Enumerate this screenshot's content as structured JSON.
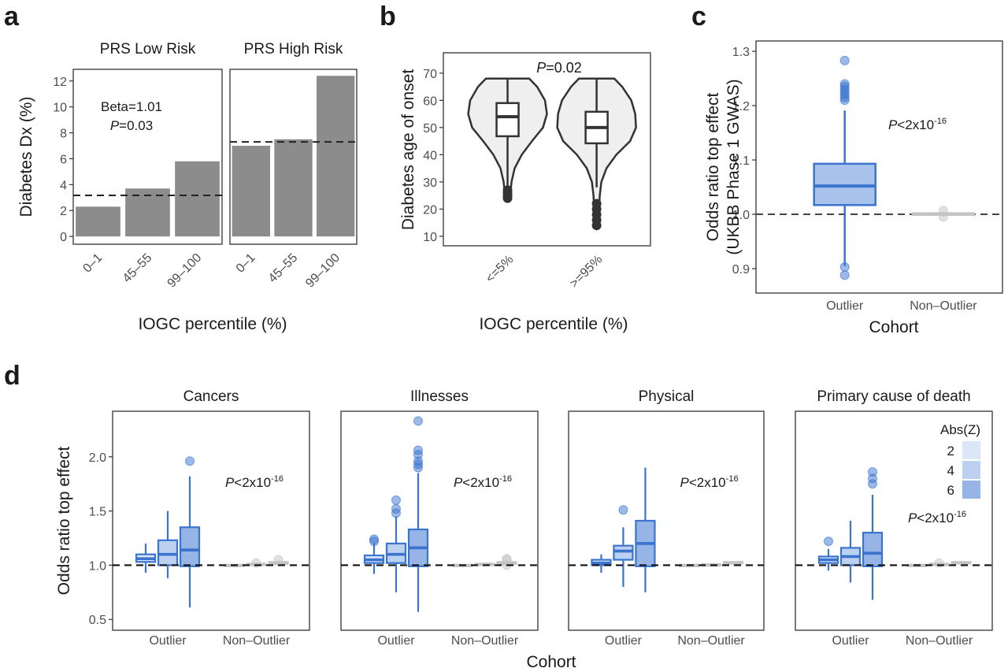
{
  "chart_data": [
    {
      "type": "bar",
      "panel": "a",
      "ylabel": "Diabetes Dx (%)",
      "xlabel": "IOGC percentile (%)",
      "ylim": [
        -0.6,
        12.9
      ],
      "yticks": [
        0,
        2,
        4,
        6,
        8,
        10,
        12
      ],
      "color": "#8c8c8c",
      "facets": [
        {
          "title": "PRS Low Risk",
          "categories": [
            "0–1",
            "45–55",
            "99–100"
          ],
          "values": [
            2.3,
            3.7,
            5.8
          ],
          "reference": 3.17
        },
        {
          "title": "PRS High Risk",
          "categories": [
            "0–1",
            "45–55",
            "99–100"
          ],
          "values": [
            7.0,
            7.5,
            12.4
          ],
          "reference": 7.3
        }
      ],
      "annotation": [
        [
          {
            "text": "Beta=1.01"
          }
        ],
        [
          {
            "text": "P",
            "style": "italic"
          },
          {
            "text": "=0.03"
          }
        ]
      ]
    },
    {
      "type": "violin",
      "panel": "b",
      "ylabel": "Diabetes age of onset",
      "xlabel": "IOGC percentile (%)",
      "ylim": [
        6.5,
        77.5
      ],
      "yticks": [
        10,
        20,
        30,
        40,
        50,
        60,
        70
      ],
      "fill": "#efefef",
      "stroke": "#333333",
      "categories": [
        "<=5%",
        ">=95%"
      ],
      "groups": [
        {
          "density_y": [
            68,
            65,
            60,
            55,
            50,
            45,
            40,
            35,
            30,
            27,
            24
          ],
          "density_width": [
            0.55,
            0.75,
            0.95,
            1.0,
            0.9,
            0.62,
            0.36,
            0.18,
            0.1,
            0.08,
            0.0
          ],
          "box": {
            "whislo": 28,
            "q1": 46.8,
            "med": 54,
            "q3": 59,
            "whishi": 68,
            "outliers": [
              24,
              25,
              26,
              27
            ]
          }
        },
        {
          "density_y": [
            68,
            65,
            60,
            55,
            50,
            45,
            40,
            35,
            30,
            25,
            20,
            15,
            13
          ],
          "density_width": [
            0.45,
            0.65,
            0.88,
            0.98,
            1.0,
            0.85,
            0.5,
            0.25,
            0.12,
            0.08,
            0.06,
            0.05,
            0.0
          ],
          "box": {
            "whislo": 28,
            "q1": 44.2,
            "med": 50,
            "q3": 55.8,
            "whishi": 68,
            "outliers": [
              14,
              16,
              18,
              20,
              22
            ]
          }
        }
      ],
      "annotation": [
        [
          {
            "text": "P",
            "style": "italic"
          },
          {
            "text": "=0.02"
          }
        ]
      ]
    },
    {
      "type": "box",
      "panel": "c",
      "ylabel": [
        "Odds ratio top effect",
        "(UKBB Phase 1 GWAS)"
      ],
      "xlabel": "Cohort",
      "ylim": [
        0.855,
        1.319
      ],
      "yticks": [
        0.9,
        {
          "value": 1,
          "label": "1.0"
        },
        1.1,
        1.2,
        1.3
      ],
      "reference": 1,
      "categories": [
        "Outlier",
        "Non–Outlier"
      ],
      "fills": [
        "#a9c2ec",
        "#dddddd"
      ],
      "strokes": [
        "#3a74cf",
        "#c4c4c4"
      ],
      "groups": [
        {
          "whislo": 0.905,
          "q1": 1.017,
          "med": 1.052,
          "q3": 1.093,
          "whishi": 1.191,
          "outliers": [
            0.888,
            0.903,
            1.21,
            1.215,
            1.22,
            1.225,
            1.23,
            1.235,
            1.24,
            1.283
          ]
        },
        {
          "whislo": 0.996,
          "q1": 0.999,
          "med": 1.0,
          "q3": 1.002,
          "whishi": 1.005,
          "outliers": [
            0.995,
            1.007
          ]
        }
      ],
      "annotation": [
        [
          {
            "text": "P",
            "style": "italic"
          },
          {
            "text": "<2x10"
          },
          {
            "text": "-16",
            "style": "superscript"
          }
        ]
      ]
    },
    {
      "type": "grouped_box",
      "panel": "d",
      "ylabel": "Odds ratio top effect",
      "xlabel": "Cohort",
      "ylim": [
        0.4,
        2.42
      ],
      "yticks": [
        0.5,
        {
          "value": 1,
          "label": "1.0"
        },
        1.5,
        {
          "value": 2,
          "label": "2.0"
        }
      ],
      "reference": 1,
      "categories": [
        "Outlier",
        "Non–Outlier"
      ],
      "cohort_strokes": [
        "#3a74cf",
        "#c4c4c4"
      ],
      "cohort_fills": [
        [
          "#dbe6f6",
          "#bcd0f0",
          "#97b4e6"
        ],
        [
          "#e6e6e6",
          "#e6e6e6",
          "#e6e6e6"
        ]
      ],
      "legend": {
        "title": "Abs(Z)",
        "labels": [
          "2",
          "4",
          "6"
        ],
        "colors": [
          "#dbe6f6",
          "#bcd0f0",
          "#97b4e6"
        ]
      },
      "facets": [
        {
          "title": "Cancers",
          "annotation": [
            {
              "text": "P",
              "style": "italic"
            },
            {
              "text": "<2x10"
            },
            {
              "text": "-16",
              "style": "superscript"
            }
          ],
          "boxes": [
            [
              {
                "whislo": 0.93,
                "q1": 1.03,
                "med": 1.06,
                "q3": 1.1,
                "whishi": 1.2,
                "outliers": []
              },
              {
                "whislo": 0.88,
                "q1": 1.0,
                "med": 1.1,
                "q3": 1.23,
                "whishi": 1.5,
                "outliers": []
              },
              {
                "whislo": 0.61,
                "q1": 0.99,
                "med": 1.14,
                "q3": 1.35,
                "whishi": 1.82,
                "outliers": [
                  1.96
                ]
              }
            ],
            [
              {
                "whislo": 0.98,
                "q1": 0.99,
                "med": 1.0,
                "q3": 1.0,
                "whishi": 1.01,
                "outliers": []
              },
              {
                "whislo": 0.99,
                "q1": 1.0,
                "med": 1.01,
                "q3": 1.01,
                "whishi": 1.02,
                "outliers": [
                  1.02
                ]
              },
              {
                "whislo": 1.0,
                "q1": 1.01,
                "med": 1.02,
                "q3": 1.03,
                "whishi": 1.04,
                "outliers": [
                  1.05
                ]
              }
            ]
          ]
        },
        {
          "title": "Illnesses",
          "annotation": [
            {
              "text": "P",
              "style": "italic"
            },
            {
              "text": "<2x10"
            },
            {
              "text": "-16",
              "style": "superscript"
            }
          ],
          "boxes": [
            [
              {
                "whislo": 0.92,
                "q1": 1.02,
                "med": 1.05,
                "q3": 1.09,
                "whishi": 1.2,
                "outliers": [
                  1.22,
                  1.24
                ]
              },
              {
                "whislo": 0.75,
                "q1": 1.02,
                "med": 1.1,
                "q3": 1.2,
                "whishi": 1.45,
                "outliers": [
                  1.48,
                  1.52,
                  1.6
                ]
              },
              {
                "whislo": 0.57,
                "q1": 0.99,
                "med": 1.16,
                "q3": 1.33,
                "whishi": 1.85,
                "outliers": [
                  1.9,
                  1.93,
                  1.96,
                  2.02,
                  2.06,
                  2.33
                ]
              }
            ],
            [
              {
                "whislo": 0.98,
                "q1": 0.99,
                "med": 1.0,
                "q3": 1.0,
                "whishi": 1.01,
                "outliers": []
              },
              {
                "whislo": 0.99,
                "q1": 1.0,
                "med": 1.01,
                "q3": 1.01,
                "whishi": 1.02,
                "outliers": []
              },
              {
                "whislo": 1.0,
                "q1": 1.01,
                "med": 1.02,
                "q3": 1.03,
                "whishi": 1.04,
                "outliers": [
                  1.0,
                  1.05,
                  1.06
                ]
              }
            ]
          ]
        },
        {
          "title": "Physical",
          "annotation": [
            {
              "text": "P",
              "style": "italic"
            },
            {
              "text": "<2x10"
            },
            {
              "text": "-16",
              "style": "superscript"
            }
          ],
          "boxes": [
            [
              {
                "whislo": 0.93,
                "q1": 1.0,
                "med": 1.02,
                "q3": 1.05,
                "whishi": 1.1,
                "outliers": []
              },
              {
                "whislo": 0.8,
                "q1": 1.05,
                "med": 1.13,
                "q3": 1.18,
                "whishi": 1.35,
                "outliers": [
                  1.51
                ]
              },
              {
                "whislo": 0.75,
                "q1": 0.99,
                "med": 1.2,
                "q3": 1.41,
                "whishi": 1.9,
                "outliers": []
              }
            ],
            [
              {
                "whislo": 0.98,
                "q1": 0.99,
                "med": 1.0,
                "q3": 1.0,
                "whishi": 1.01,
                "outliers": []
              },
              {
                "whislo": 0.99,
                "q1": 1.0,
                "med": 1.0,
                "q3": 1.01,
                "whishi": 1.02,
                "outliers": []
              },
              {
                "whislo": 1.01,
                "q1": 1.02,
                "med": 1.02,
                "q3": 1.03,
                "whishi": 1.04,
                "outliers": []
              }
            ]
          ]
        },
        {
          "title": "Primary cause of death",
          "annotation": [
            {
              "text": "P",
              "style": "italic"
            },
            {
              "text": "<2x10"
            },
            {
              "text": "-16",
              "style": "superscript"
            }
          ],
          "boxes": [
            [
              {
                "whislo": 0.95,
                "q1": 1.02,
                "med": 1.05,
                "q3": 1.08,
                "whishi": 1.15,
                "outliers": [
                  1.22
                ]
              },
              {
                "whislo": 0.84,
                "q1": 1.0,
                "med": 1.08,
                "q3": 1.16,
                "whishi": 1.41,
                "outliers": []
              },
              {
                "whislo": 0.68,
                "q1": 0.99,
                "med": 1.11,
                "q3": 1.3,
                "whishi": 1.65,
                "outliers": [
                  1.75,
                  1.8,
                  1.86
                ]
              }
            ],
            [
              {
                "whislo": 0.98,
                "q1": 0.99,
                "med": 1.0,
                "q3": 1.0,
                "whishi": 1.01,
                "outliers": []
              },
              {
                "whislo": 0.99,
                "q1": 1.0,
                "med": 1.01,
                "q3": 1.01,
                "whishi": 1.02,
                "outliers": [
                  1.02
                ]
              },
              {
                "whislo": 1.01,
                "q1": 1.02,
                "med": 1.02,
                "q3": 1.03,
                "whishi": 1.04,
                "outliers": []
              }
            ]
          ]
        }
      ]
    }
  ]
}
